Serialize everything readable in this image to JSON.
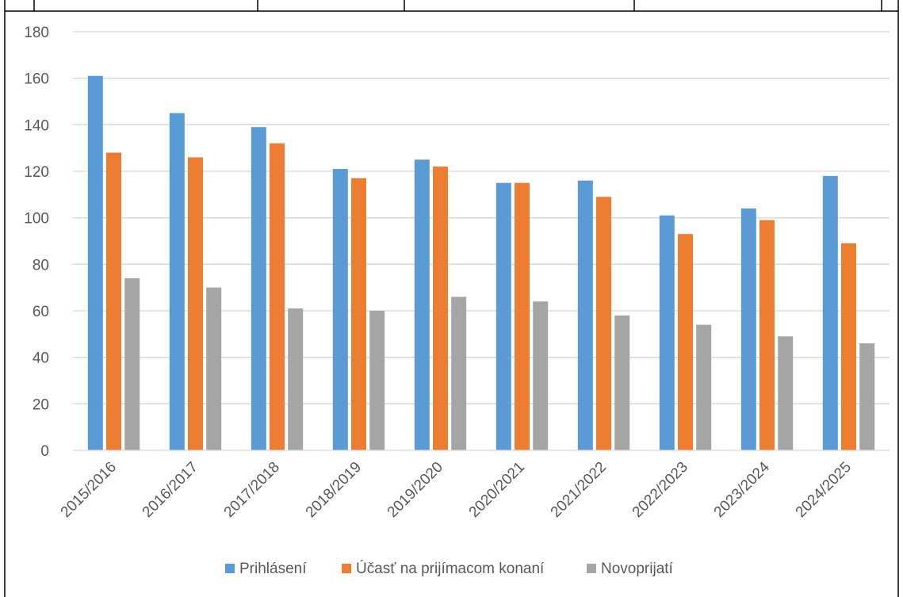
{
  "chart_data": {
    "type": "bar",
    "categories": [
      "2015/2016",
      "2016/2017",
      "2017/2018",
      "2018/2019",
      "2019/2020",
      "2020/2021",
      "2021/2022",
      "2022/2023",
      "2023/2024",
      "2024/2025"
    ],
    "series": [
      {
        "name": "Prihlásení",
        "color": "#5b9bd5",
        "values": [
          161,
          145,
          139,
          121,
          125,
          115,
          116,
          101,
          104,
          118
        ]
      },
      {
        "name": "Účasť na prijímacom konaní",
        "color": "#ed7d31",
        "values": [
          128,
          126,
          132,
          117,
          122,
          115,
          109,
          93,
          99,
          89
        ]
      },
      {
        "name": "Novoprijatí",
        "color": "#a5a5a5",
        "values": [
          74,
          70,
          61,
          60,
          66,
          64,
          58,
          54,
          49,
          46
        ]
      }
    ],
    "ylim": [
      0,
      180
    ],
    "yticks": [
      0,
      20,
      40,
      60,
      80,
      100,
      120,
      140,
      160,
      180
    ],
    "grid": true,
    "legend": "bottom"
  }
}
